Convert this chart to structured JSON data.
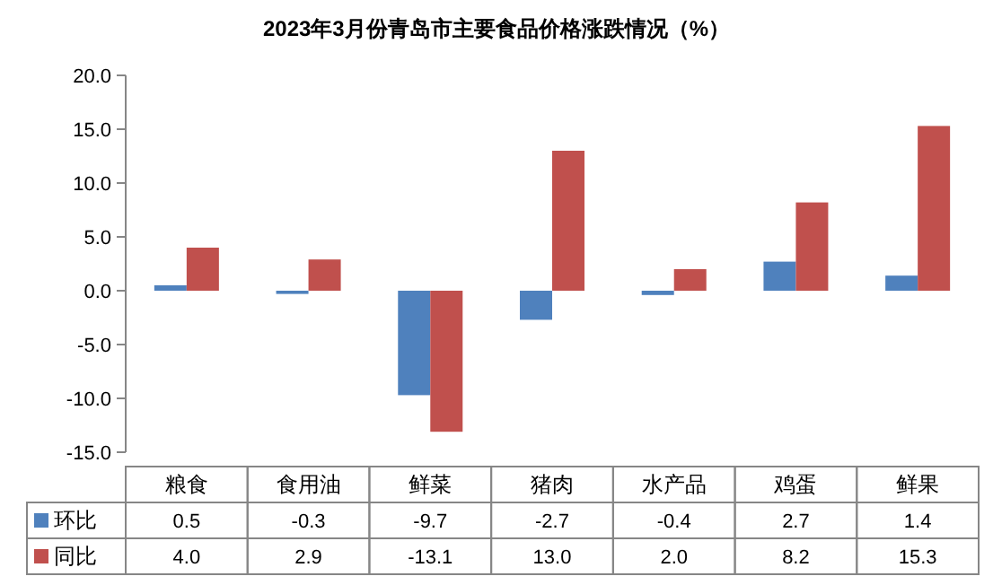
{
  "chart_data": {
    "type": "bar",
    "title": "2023年3月份青岛市主要食品价格涨跌情况（%）",
    "categories": [
      "粮食",
      "食用油",
      "鲜菜",
      "猪肉",
      "水产品",
      "鸡蛋",
      "鲜果"
    ],
    "series": [
      {
        "name": "环比",
        "color": "#4f81bd",
        "values": [
          0.5,
          -0.3,
          -9.7,
          -2.7,
          -0.4,
          2.7,
          1.4
        ],
        "value_labels": [
          "0.5",
          "-0.3",
          "-9.7",
          "-2.7",
          "-0.4",
          "2.7",
          "1.4"
        ]
      },
      {
        "name": "同比",
        "color": "#c0504d",
        "values": [
          4.0,
          2.9,
          -13.1,
          13.0,
          2.0,
          8.2,
          15.3
        ],
        "value_labels": [
          "4.0",
          "2.9",
          "-13.1",
          "13.0",
          "2.0",
          "8.2",
          "15.3"
        ]
      }
    ],
    "ylim": [
      -15,
      20
    ],
    "yticks": [
      {
        "value": -15,
        "label": "-15.0"
      },
      {
        "value": -10,
        "label": "-10.0"
      },
      {
        "value": -5,
        "label": "-5.0"
      },
      {
        "value": 0,
        "label": "0.0"
      },
      {
        "value": 5,
        "label": "5.0"
      },
      {
        "value": 10,
        "label": "10.0"
      },
      {
        "value": 15,
        "label": "15.0"
      },
      {
        "value": 20,
        "label": "20.0"
      }
    ],
    "grid": false,
    "legend": "bottom"
  }
}
